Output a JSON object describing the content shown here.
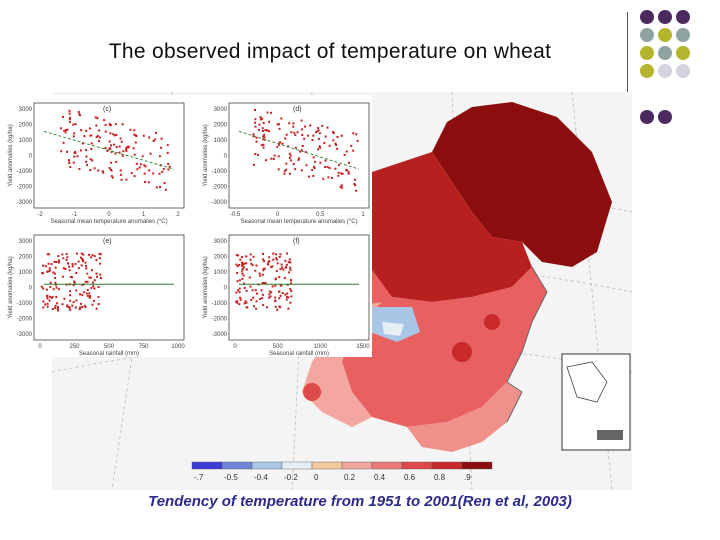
{
  "slide": {
    "title": "The observed impact of temperature on wheat",
    "caption": "Tendency of temperature from 1951 to 2001(Ren et al, 2003)"
  },
  "decoration": {
    "dot_colors": [
      "#4b2a60",
      "#4b2a60",
      "#4b2a60",
      "#8fa3a3",
      "#b5b52d",
      "#8fa3a3",
      "#b5b52d",
      "#8fa3a3",
      "#b5b52d",
      "#b5b52d",
      "#d4d4e0",
      "#d4d4e0"
    ]
  },
  "scatter_panels": [
    {
      "label": "(c)",
      "xlabel": "Seasonal mean temperature anomalies (°C)",
      "ylabel": "Yield anomalies (kg/ha)",
      "xticks": [
        "-2",
        "-1",
        "0",
        "1",
        "2"
      ],
      "yticks": [
        "3000",
        "2000",
        "1000",
        "0",
        "-1000",
        "-2000",
        "-3000"
      ],
      "trend": "negative"
    },
    {
      "label": "(d)",
      "xlabel": "Seasonal mean temperature anomalies (°C)",
      "ylabel": "Yield anomalies (kg/ha)",
      "xticks": [
        "-0.5",
        "0",
        "0.5",
        "1"
      ],
      "yticks": [
        "3000",
        "2000",
        "1000",
        "0",
        "-1000",
        "-2000",
        "-3000"
      ],
      "trend": "negative"
    },
    {
      "label": "(e)",
      "xlabel": "Seasonal rainfall (mm)",
      "ylabel": "Yield anomalies (kg/ha)",
      "xticks": [
        "0",
        "250",
        "500",
        "750",
        "1000"
      ],
      "yticks": [
        "3000",
        "2000",
        "1000",
        "0",
        "-1000",
        "-2000",
        "-3000"
      ],
      "trend": "flat"
    },
    {
      "label": "(f)",
      "xlabel": "Seasonal rainfall (mm)",
      "ylabel": "Yield anomalies (kg/ha)",
      "xticks": [
        "0",
        "500",
        "1000",
        "1500"
      ],
      "yticks": [
        "3000",
        "2000",
        "1000",
        "0",
        "-1000",
        "-2000",
        "-3000"
      ],
      "trend": "flat"
    }
  ],
  "map_legend": {
    "labels": [
      "-.7",
      "-0.5",
      "-0.4",
      "-0.2",
      "0",
      "0.2",
      "0.4",
      "0.6",
      "0.8",
      ".9"
    ],
    "colors": [
      "#3b3bd6",
      "#6f86d6",
      "#a9c6e6",
      "#e6eef6",
      "#f3caa0",
      "#f2a49e",
      "#ec7a77",
      "#de4a4a",
      "#c82a2a",
      "#8c0d0d"
    ]
  }
}
